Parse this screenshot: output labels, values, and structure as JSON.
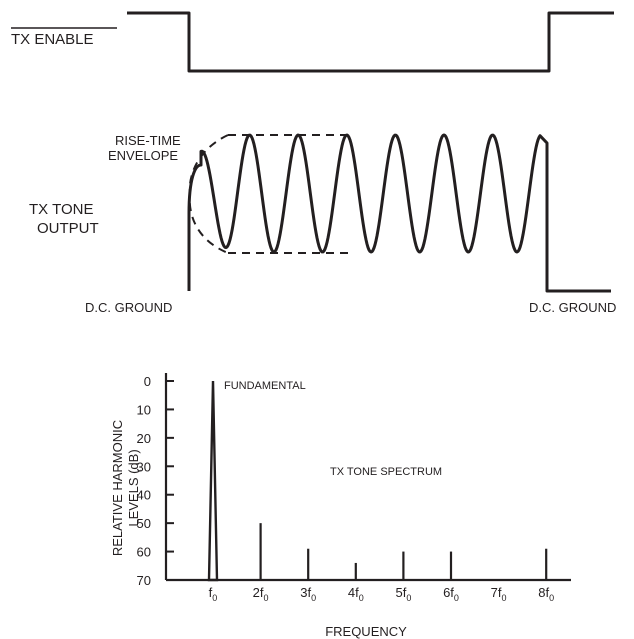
{
  "timing": {
    "tx_enable_label": "TX ENABLE",
    "rise_time_line1": "RISE-TIME",
    "rise_time_line2": "ENVELOPE",
    "tone_output_line1": "TX TONE",
    "tone_output_line2": "OUTPUT",
    "dc_ground_left": "D.C. GROUND",
    "dc_ground_right": "D.C. GROUND"
  },
  "chart_data": {
    "type": "bar",
    "title": "TX TONE SPECTRUM",
    "xlabel": "FREQUENCY",
    "ylabel_line1": "RELATIVE HARMONIC",
    "ylabel_line2": "LEVELS (dB)",
    "ylim": [
      0,
      70
    ],
    "y_inverted": true,
    "y_ticks": [
      "0",
      "10",
      "20",
      "30",
      "40",
      "50",
      "60",
      "70"
    ],
    "categories": [
      {
        "base": "f",
        "sub": "0"
      },
      {
        "base": "2f",
        "sub": "0"
      },
      {
        "base": "3f",
        "sub": "0"
      },
      {
        "base": "4f",
        "sub": "0"
      },
      {
        "base": "5f",
        "sub": "0"
      },
      {
        "base": "6f",
        "sub": "0"
      },
      {
        "base": "7f",
        "sub": "0"
      },
      {
        "base": "8f",
        "sub": "0"
      }
    ],
    "values": [
      0,
      50,
      59,
      64,
      60,
      60,
      null,
      59
    ],
    "annotation": "FUNDAMENTAL"
  }
}
